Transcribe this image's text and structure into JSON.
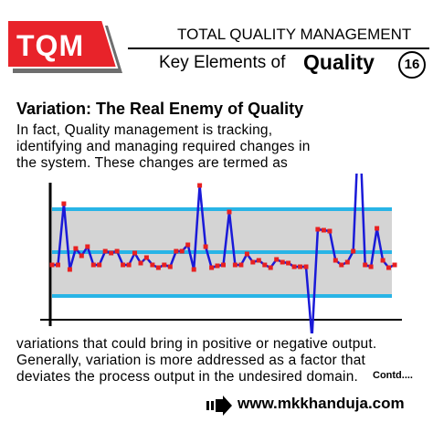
{
  "logo": {
    "text": "TQM",
    "colors": {
      "red": "#e8232a",
      "shadow": "#6e6e6e"
    }
  },
  "header": {
    "series_title": "TOTAL QUALITY MANAGEMENT",
    "main_title_part1": "Key Elements of",
    "main_title_part2": "Quality",
    "page_number": "16"
  },
  "section": {
    "heading": "Variation: The Real Enemy of Quality",
    "paragraph1_lines": [
      "In fact, Quality management is tracking,",
      "identifying and managing required changes in",
      "the system. These changes are termed as"
    ],
    "paragraph2_lines": [
      "variations that could bring in positive or negative output.",
      "Generally, variation is more addressed as a factor that",
      "deviates the process output in the undesired domain."
    ],
    "contd": "Contd...."
  },
  "chart_data": {
    "type": "line",
    "y_range": [
      -1,
      1
    ],
    "control_limits": {
      "upper": 0.58,
      "center": 0.15,
      "lower": -0.45
    },
    "values": [
      0,
      0,
      0.67,
      -0.05,
      0.18,
      0.1,
      0.2,
      0,
      0,
      0.15,
      0.13,
      0.15,
      0,
      0,
      0.13,
      0.02,
      0.08,
      0,
      -0.03,
      0,
      -0.02,
      0.15,
      0.15,
      0.22,
      -0.05,
      0.87,
      0.2,
      -0.03,
      -0.01,
      0,
      0.58,
      0,
      0,
      0.12,
      0.03,
      0.05,
      0,
      -0.03,
      0.06,
      0.03,
      0.02,
      -0.02,
      -0.02,
      -0.02,
      -0.8,
      0.39,
      0.38,
      0.37,
      0.05,
      0,
      0.03,
      0.15,
      1.65,
      0,
      -0.02,
      0.4,
      0.05,
      -0.03,
      0
    ],
    "colors": {
      "line": "#1a1ad8",
      "point": "#e82020",
      "band": "#d4d4d4",
      "limit": "#28b4e6",
      "axis": "#000000"
    }
  },
  "footer": {
    "url": "www.mkkhanduja.com",
    "arrow_icon": "double-arrow-icon"
  }
}
